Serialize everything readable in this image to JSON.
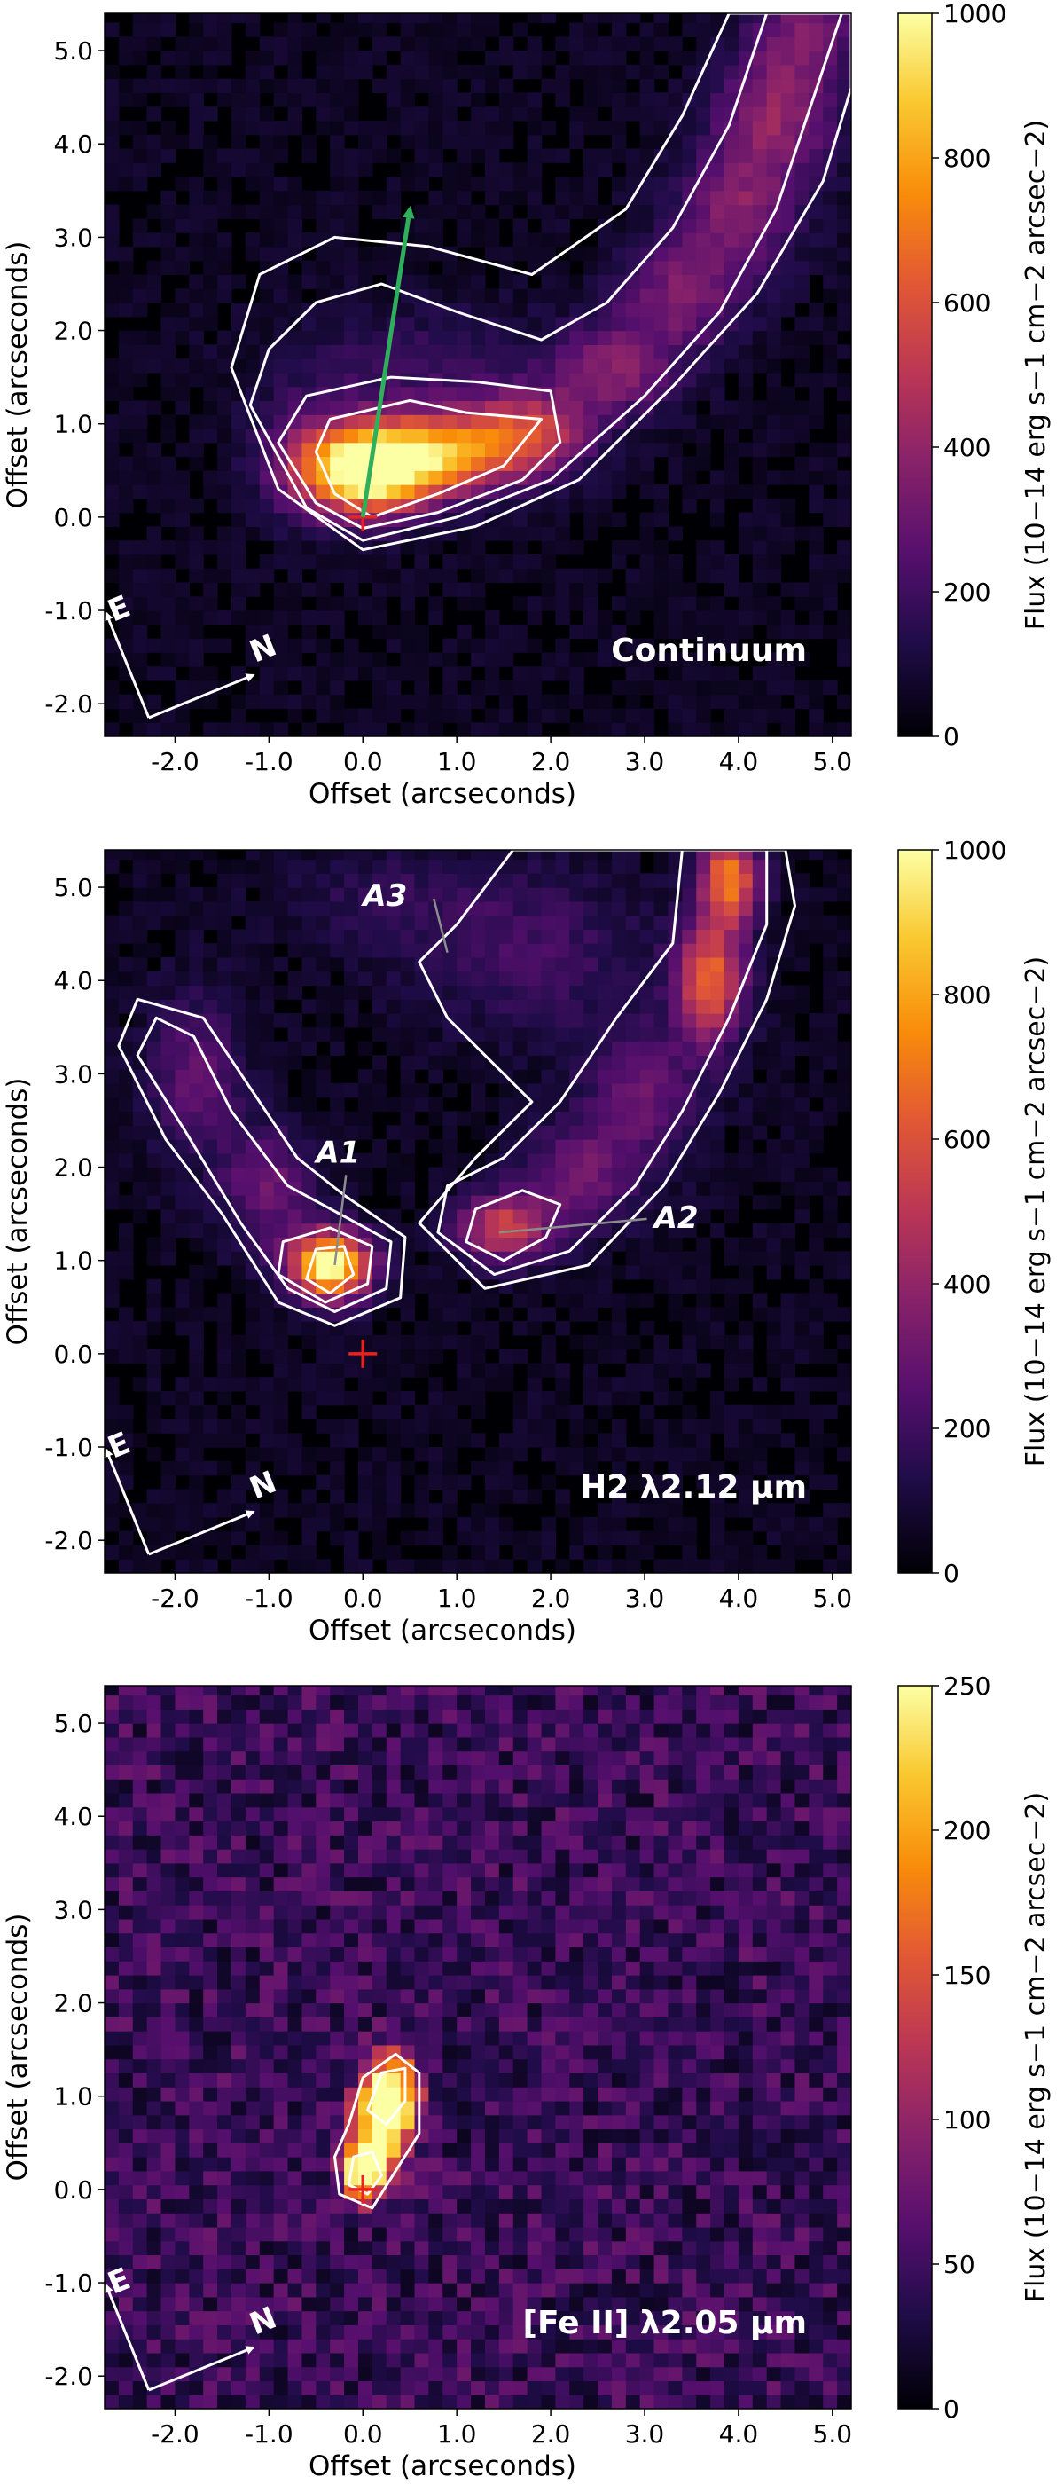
{
  "chart_data": [
    {
      "type": "heatmap",
      "panel_label": "Continuum",
      "xlabel": "Offset (arcseconds)",
      "ylabel": "Offset (arcseconds)",
      "xlim": [
        -2.75,
        5.2
      ],
      "ylim": [
        -2.35,
        5.4
      ],
      "xticks": [
        "-2.0",
        "-1.0",
        "0.0",
        "1.0",
        "2.0",
        "3.0",
        "4.0",
        "5.0"
      ],
      "yticks": [
        "-2.0",
        "-1.0",
        "0.0",
        "1.0",
        "2.0",
        "3.0",
        "4.0",
        "5.0"
      ],
      "colorbar": {
        "min": 0,
        "max": 1000,
        "ticks": [
          "0",
          "200",
          "400",
          "600",
          "800",
          "1000"
        ],
        "label": "Flux (10−14 erg s−1 cm−2 arcsec−2)",
        "colormap": "inferno"
      },
      "source_marker": {
        "x": 0.0,
        "y": 0.0,
        "color": "#e8231e"
      },
      "arrow": {
        "from": [
          0.0,
          0.0
        ],
        "to": [
          0.5,
          3.3
        ],
        "color": "#2fae5b"
      },
      "compass": [
        "E",
        "N"
      ],
      "blobs": [
        {
          "x": 0.05,
          "y": 0.5,
          "sx": 0.5,
          "sy": 0.32,
          "amp": 1000
        },
        {
          "x": 0.9,
          "y": 0.7,
          "sx": 0.65,
          "sy": 0.3,
          "amp": 600
        },
        {
          "x": 1.8,
          "y": 0.95,
          "sx": 0.45,
          "sy": 0.3,
          "amp": 380
        },
        {
          "x": 2.7,
          "y": 1.6,
          "sx": 0.45,
          "sy": 0.35,
          "amp": 300
        },
        {
          "x": 3.4,
          "y": 2.4,
          "sx": 0.45,
          "sy": 0.4,
          "amp": 280
        },
        {
          "x": 4.0,
          "y": 3.3,
          "sx": 0.45,
          "sy": 0.45,
          "amp": 300
        },
        {
          "x": 4.4,
          "y": 4.3,
          "sx": 0.45,
          "sy": 0.45,
          "amp": 320
        },
        {
          "x": 4.7,
          "y": 5.2,
          "sx": 0.4,
          "sy": 0.4,
          "amp": 260
        },
        {
          "x": 0.6,
          "y": 1.6,
          "sx": 1.0,
          "sy": 0.5,
          "amp": 120
        },
        {
          "x": -0.6,
          "y": 0.7,
          "sx": 0.4,
          "sy": 0.5,
          "amp": 140
        }
      ],
      "noise": 55,
      "contours": [
        {
          "level": 0.5,
          "points": [
            [
              -0.5,
              0.7
            ],
            [
              -0.3,
              0.25
            ],
            [
              0.1,
              0.0
            ],
            [
              0.8,
              0.25
            ],
            [
              1.5,
              0.55
            ],
            [
              1.9,
              1.05
            ],
            [
              1.1,
              1.12
            ],
            [
              0.5,
              1.25
            ],
            [
              -0.35,
              1.05
            ]
          ]
        },
        {
          "level": 0.3,
          "points": [
            [
              -0.9,
              0.8
            ],
            [
              -0.5,
              0.15
            ],
            [
              0.0,
              -0.12
            ],
            [
              0.8,
              0.05
            ],
            [
              1.7,
              0.4
            ],
            [
              2.1,
              0.8
            ],
            [
              2.0,
              1.35
            ],
            [
              1.2,
              1.45
            ],
            [
              0.3,
              1.5
            ],
            [
              -0.6,
              1.3
            ]
          ]
        },
        {
          "level": 0.15,
          "points": [
            [
              -1.2,
              1.2
            ],
            [
              -0.6,
              0.1
            ],
            [
              0.0,
              -0.25
            ],
            [
              1.0,
              0.0
            ],
            [
              2.0,
              0.4
            ],
            [
              3.0,
              1.3
            ],
            [
              3.8,
              2.2
            ],
            [
              4.4,
              3.3
            ],
            [
              4.8,
              4.5
            ],
            [
              5.1,
              5.4
            ],
            [
              4.3,
              5.4
            ],
            [
              3.9,
              4.2
            ],
            [
              3.3,
              3.1
            ],
            [
              2.6,
              2.3
            ],
            [
              1.9,
              1.9
            ],
            [
              1.0,
              2.2
            ],
            [
              0.2,
              2.5
            ],
            [
              -0.5,
              2.3
            ],
            [
              -1.0,
              1.8
            ]
          ]
        },
        {
          "level": 0.08,
          "points": [
            [
              -1.4,
              1.6
            ],
            [
              -0.9,
              0.3
            ],
            [
              0.0,
              -0.35
            ],
            [
              1.2,
              -0.1
            ],
            [
              2.3,
              0.4
            ],
            [
              3.3,
              1.4
            ],
            [
              4.2,
              2.4
            ],
            [
              4.9,
              3.6
            ],
            [
              5.2,
              4.6
            ],
            [
              5.2,
              5.4
            ],
            [
              3.9,
              5.4
            ],
            [
              3.4,
              4.3
            ],
            [
              2.8,
              3.3
            ],
            [
              1.8,
              2.6
            ],
            [
              0.7,
              2.9
            ],
            [
              -0.3,
              3.0
            ],
            [
              -1.1,
              2.6
            ]
          ]
        }
      ]
    },
    {
      "type": "heatmap",
      "panel_label": "H2 λ2.12 μm",
      "xlabel": "Offset (arcseconds)",
      "ylabel": "Offset (arcseconds)",
      "xlim": [
        -2.75,
        5.2
      ],
      "ylim": [
        -2.35,
        5.4
      ],
      "xticks": [
        "-2.0",
        "-1.0",
        "0.0",
        "1.0",
        "2.0",
        "3.0",
        "4.0",
        "5.0"
      ],
      "yticks": [
        "-2.0",
        "-1.0",
        "0.0",
        "1.0",
        "2.0",
        "3.0",
        "4.0",
        "5.0"
      ],
      "colorbar": {
        "min": 0,
        "max": 1000,
        "ticks": [
          "0",
          "200",
          "400",
          "600",
          "800",
          "1000"
        ],
        "label": "Flux (10−14 erg s−1 cm−2 arcsec−2)",
        "colormap": "inferno"
      },
      "source_marker": {
        "x": 0.0,
        "y": 0.0,
        "color": "#e8231e"
      },
      "compass": [
        "E",
        "N"
      ],
      "annotations": [
        {
          "text": "A1",
          "x": -0.5,
          "y": 2.05,
          "tip": [
            -0.3,
            0.95
          ]
        },
        {
          "text": "A2",
          "x": 3.1,
          "y": 1.35,
          "tip": [
            1.45,
            1.3
          ]
        },
        {
          "text": "A3",
          "x": 0.0,
          "y": 4.8,
          "tip": [
            0.9,
            4.3
          ]
        }
      ],
      "blobs": [
        {
          "x": -0.35,
          "y": 0.95,
          "sx": 0.3,
          "sy": 0.25,
          "amp": 1000
        },
        {
          "x": -1.0,
          "y": 1.8,
          "sx": 0.35,
          "sy": 0.45,
          "amp": 250
        },
        {
          "x": -1.8,
          "y": 3.0,
          "sx": 0.35,
          "sy": 0.6,
          "amp": 220
        },
        {
          "x": 1.5,
          "y": 1.35,
          "sx": 0.35,
          "sy": 0.25,
          "amp": 480
        },
        {
          "x": 2.3,
          "y": 1.9,
          "sx": 0.45,
          "sy": 0.4,
          "amp": 250
        },
        {
          "x": 3.0,
          "y": 2.8,
          "sx": 0.45,
          "sy": 0.5,
          "amp": 230
        },
        {
          "x": 3.7,
          "y": 4.0,
          "sx": 0.25,
          "sy": 0.45,
          "amp": 600
        },
        {
          "x": 3.9,
          "y": 5.1,
          "sx": 0.22,
          "sy": 0.35,
          "amp": 650
        },
        {
          "x": 1.8,
          "y": 4.3,
          "sx": 0.9,
          "sy": 0.6,
          "amp": 150
        },
        {
          "x": 0.3,
          "y": 4.9,
          "sx": 0.8,
          "sy": 0.4,
          "amp": 90
        }
      ],
      "noise": 55,
      "contours": [
        {
          "level": 0.6,
          "points": [
            [
              -0.6,
              0.8
            ],
            [
              -0.35,
              0.65
            ],
            [
              -0.1,
              0.85
            ],
            [
              -0.2,
              1.15
            ],
            [
              -0.5,
              1.12
            ]
          ]
        },
        {
          "level": 0.3,
          "points": [
            [
              -0.9,
              0.85
            ],
            [
              -0.4,
              0.55
            ],
            [
              0.05,
              0.75
            ],
            [
              0.1,
              1.15
            ],
            [
              -0.35,
              1.35
            ],
            [
              -0.85,
              1.2
            ]
          ]
        },
        {
          "level": 0.15,
          "points": [
            [
              -1.3,
              1.4
            ],
            [
              -0.8,
              0.7
            ],
            [
              -0.3,
              0.45
            ],
            [
              0.25,
              0.7
            ],
            [
              0.3,
              1.2
            ],
            [
              -0.25,
              1.5
            ],
            [
              -0.8,
              1.8
            ],
            [
              -1.4,
              2.6
            ],
            [
              -1.8,
              3.4
            ],
            [
              -2.2,
              3.6
            ],
            [
              -2.4,
              3.2
            ],
            [
              -1.9,
              2.4
            ]
          ]
        },
        {
          "level": 0.08,
          "points": [
            [
              -1.5,
              1.5
            ],
            [
              -0.9,
              0.55
            ],
            [
              -0.3,
              0.3
            ],
            [
              0.4,
              0.6
            ],
            [
              0.45,
              1.25
            ],
            [
              -0.2,
              1.7
            ],
            [
              -0.7,
              2.1
            ],
            [
              -1.3,
              3.0
            ],
            [
              -1.7,
              3.6
            ],
            [
              -2.4,
              3.8
            ],
            [
              -2.6,
              3.3
            ],
            [
              -2.1,
              2.3
            ]
          ]
        },
        {
          "level": 0.2,
          "points": [
            [
              1.1,
              1.2
            ],
            [
              1.5,
              1.0
            ],
            [
              1.95,
              1.25
            ],
            [
              2.1,
              1.6
            ],
            [
              1.7,
              1.75
            ],
            [
              1.2,
              1.55
            ]
          ]
        },
        {
          "level": 0.1,
          "points": [
            [
              0.8,
              1.3
            ],
            [
              1.4,
              0.85
            ],
            [
              2.2,
              1.1
            ],
            [
              2.9,
              1.8
            ],
            [
              3.4,
              2.6
            ],
            [
              3.9,
              3.6
            ],
            [
              4.3,
              4.6
            ],
            [
              4.3,
              5.4
            ],
            [
              3.4,
              5.4
            ],
            [
              3.3,
              4.4
            ],
            [
              2.7,
              3.6
            ],
            [
              2.1,
              2.7
            ],
            [
              1.5,
              2.1
            ],
            [
              0.9,
              1.8
            ]
          ]
        },
        {
          "level": 0.05,
          "points": [
            [
              0.6,
              1.4
            ],
            [
              1.3,
              0.7
            ],
            [
              2.4,
              0.95
            ],
            [
              3.2,
              1.8
            ],
            [
              3.8,
              2.8
            ],
            [
              4.3,
              3.8
            ],
            [
              4.6,
              4.8
            ],
            [
              4.5,
              5.4
            ],
            [
              1.6,
              5.4
            ],
            [
              1.0,
              4.6
            ],
            [
              0.6,
              4.2
            ],
            [
              0.9,
              3.6
            ],
            [
              1.4,
              3.1
            ],
            [
              1.8,
              2.7
            ],
            [
              1.2,
              2.1
            ]
          ]
        }
      ]
    },
    {
      "type": "heatmap",
      "panel_label": "[Fe II] λ2.05 μm",
      "xlabel": "Offset (arcseconds)",
      "ylabel": "Offset (arcseconds)",
      "xlim": [
        -2.75,
        5.2
      ],
      "ylim": [
        -2.35,
        5.4
      ],
      "xticks": [
        "-2.0",
        "-1.0",
        "0.0",
        "1.0",
        "2.0",
        "3.0",
        "4.0",
        "5.0"
      ],
      "yticks": [
        "-2.0",
        "-1.0",
        "0.0",
        "1.0",
        "2.0",
        "3.0",
        "4.0",
        "5.0"
      ],
      "colorbar": {
        "min": 0,
        "max": 250,
        "ticks": [
          "0",
          "50",
          "100",
          "150",
          "200",
          "250"
        ],
        "label": "Flux (10−14 erg s−1 cm−2 arcsec−2)",
        "colormap": "inferno"
      },
      "source_marker": {
        "x": 0.0,
        "y": 0.0,
        "color": "#e8231e"
      },
      "compass": [
        "E",
        "N"
      ],
      "blobs": [
        {
          "x": 0.3,
          "y": 1.0,
          "sx": 0.2,
          "sy": 0.3,
          "amp": 250
        },
        {
          "x": 0.0,
          "y": 0.2,
          "sx": 0.15,
          "sy": 0.2,
          "amp": 230
        },
        {
          "x": 0.15,
          "y": 0.55,
          "sx": 0.2,
          "sy": 0.3,
          "amp": 150
        }
      ],
      "noise": 45,
      "contours": [
        {
          "level": 0.5,
          "points": [
            [
              0.05,
              0.85
            ],
            [
              0.25,
              0.7
            ],
            [
              0.45,
              0.95
            ],
            [
              0.45,
              1.3
            ],
            [
              0.2,
              1.25
            ]
          ]
        },
        {
          "level": 0.35,
          "points": [
            [
              -0.15,
              0.05
            ],
            [
              0.05,
              -0.05
            ],
            [
              0.2,
              0.15
            ],
            [
              0.1,
              0.4
            ],
            [
              -0.1,
              0.35
            ]
          ]
        },
        {
          "level": 0.2,
          "points": [
            [
              -0.25,
              -0.05
            ],
            [
              0.1,
              -0.2
            ],
            [
              0.35,
              0.2
            ],
            [
              0.6,
              0.6
            ],
            [
              0.6,
              1.25
            ],
            [
              0.35,
              1.45
            ],
            [
              0.0,
              1.2
            ],
            [
              -0.15,
              0.7
            ],
            [
              -0.3,
              0.35
            ]
          ]
        }
      ]
    }
  ]
}
